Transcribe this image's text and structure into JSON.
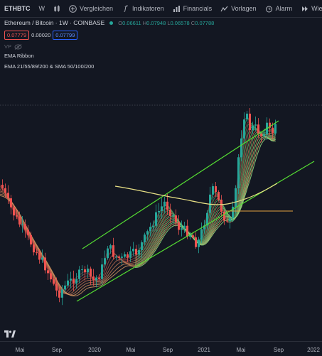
{
  "toolbar": {
    "symbol": "ETHBTC",
    "interval": "W",
    "compare": "Vergleichen",
    "indicators": "Indikatoren",
    "financials": "Financials",
    "templates": "Vorlagen",
    "alert": "Alarm",
    "replay": "Wie"
  },
  "legend": {
    "title": "Ethereum / Bitcoin · 1W · COINBASE",
    "open_label": "O",
    "open": "0.06611",
    "high_label": "H",
    "high": "0.07948",
    "low_label": "L",
    "low": "0.06578",
    "close_label": "C",
    "close": "0.07788",
    "bid": "0.07779",
    "spread": "0.00020",
    "ask": "0.07799",
    "vp": "VP",
    "indicator1": "EMA Ribbon",
    "indicator2": "EMA 21/55/89/200 & SMA 50/100/200"
  },
  "axis": {
    "labels": [
      "Mai",
      "Sep",
      "2020",
      "Mai",
      "Sep",
      "2021",
      "Mai",
      "Sep",
      "2022"
    ]
  },
  "colors": {
    "background": "#131722",
    "up": "#26a69a",
    "down": "#ef5350",
    "channel": "#55dd33",
    "sma": "#e8e085"
  }
}
